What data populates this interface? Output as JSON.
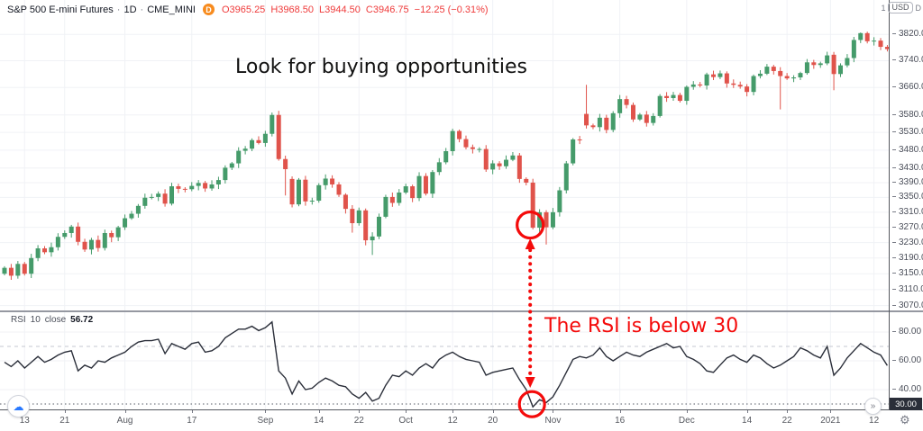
{
  "header": {
    "symbol": "S&P 500 E-mini Futures",
    "separator": "·",
    "interval": "1D",
    "exchange": "CME_MINI",
    "badge": "D",
    "ohlc": {
      "open": "O3965.25",
      "high": "H3968.50",
      "low": "L3944.50",
      "close": "C3946.75",
      "change": "−12.25 (−0.31%)"
    }
  },
  "axis_header": {
    "prefix": "1",
    "unit": "USD",
    "suffix": "D"
  },
  "indicator": {
    "name": "RSI",
    "length": "10",
    "source": "close",
    "value": "56.72"
  },
  "annotations": {
    "buy_text": "Look for buying opportunities",
    "rsi_text": "The RSI is below 30",
    "circle_bar": 79,
    "circle_price": 3269,
    "circle_rsi_value": 28
  },
  "price_axis": {
    "ticks": [
      3820,
      3740,
      3660,
      3580,
      3530,
      3480,
      3430,
      3390,
      3350,
      3310,
      3270,
      3230,
      3190,
      3150,
      3110,
      3070
    ]
  },
  "rsi_axis": {
    "ticks": [
      80,
      60,
      40
    ],
    "badge": "30.00",
    "upper_band": 70,
    "lower_band": 30
  },
  "time_axis": {
    "ticks": [
      {
        "label": "13",
        "bar": 3
      },
      {
        "label": "21",
        "bar": 9
      },
      {
        "label": "Aug",
        "bar": 18
      },
      {
        "label": "17",
        "bar": 28
      },
      {
        "label": "Sep",
        "bar": 39
      },
      {
        "label": "14",
        "bar": 47
      },
      {
        "label": "22",
        "bar": 53
      },
      {
        "label": "Oct",
        "bar": 60
      },
      {
        "label": "12",
        "bar": 67
      },
      {
        "label": "20",
        "bar": 73
      },
      {
        "label": "Nov",
        "bar": 82
      },
      {
        "label": "16",
        "bar": 92
      },
      {
        "label": "Dec",
        "bar": 102
      },
      {
        "label": "14",
        "bar": 111
      },
      {
        "label": "22",
        "bar": 117
      },
      {
        "label": "2021",
        "bar": 123.5
      },
      {
        "label": "12",
        "bar": 130
      }
    ]
  },
  "buttons": {
    "cloud_icon": "☁",
    "chevron_icon": "»",
    "gear_icon": "⚙"
  },
  "colors": {
    "up": "#459b6a",
    "down": "#e0534b",
    "rsi_line": "#2a2e39",
    "grid": "#f0f2f6",
    "annotation": "#f40b0b",
    "ohlc_text": "#ef3b3b",
    "badge_bg": "#2a2e39",
    "separator": "#9598a1",
    "axis_border": "#55585f"
  },
  "chart_data": [
    {
      "type": "candlestick",
      "title": "S&P 500 E-mini Futures · 1D · CME_MINI",
      "ylabel": "Price (USD)",
      "ylim": [
        3070,
        3850
      ],
      "scale": "log",
      "closes": [
        3165,
        3145,
        3175,
        3150,
        3190,
        3215,
        3205,
        3218,
        3245,
        3255,
        3272,
        3232,
        3212,
        3237,
        3216,
        3255,
        3244,
        3270,
        3294,
        3306,
        3327,
        3349,
        3351,
        3360,
        3333,
        3380,
        3373,
        3372,
        3381,
        3389,
        3374,
        3385,
        3397,
        3431,
        3443,
        3478,
        3484,
        3508,
        3500,
        3526,
        3580,
        3455,
        3427,
        3331,
        3398,
        3339,
        3341,
        3383,
        3401,
        3385,
        3357,
        3319,
        3281,
        3315,
        3236,
        3246,
        3298,
        3351,
        3335,
        3363,
        3380,
        3348,
        3408,
        3360,
        3419,
        3446,
        3477,
        3534,
        3511,
        3488,
        3483,
        3483,
        3426,
        3443,
        3435,
        3453,
        3465,
        3400,
        3390,
        3269,
        3310,
        3270,
        3310,
        3369,
        3443,
        3510,
        3509,
        3550,
        3545,
        3572,
        3537,
        3585,
        3626,
        3609,
        3567,
        3581,
        3557,
        3577,
        3635,
        3629,
        3638,
        3621,
        3662,
        3669,
        3666,
        3699,
        3691,
        3702,
        3672,
        3668,
        3663,
        3647,
        3694,
        3701,
        3722,
        3709,
        3694,
        3687,
        3690,
        3703,
        3735,
        3727,
        3732,
        3756,
        3700,
        3726,
        3748,
        3803,
        3824,
        3799,
        3801,
        3782,
        3775
      ],
      "gap_opens": {
        "0": 3150,
        "43": 3400,
        "87": 3583,
        "124": 3758
      },
      "wick_overrides": {
        "40": [
          3587,
          null
        ],
        "42": [
          null,
          3355
        ],
        "52": [
          null,
          3256
        ],
        "55": [
          null,
          3198
        ],
        "81": [
          null,
          3225
        ],
        "87": [
          3668,
          null
        ],
        "116": [
          null,
          3596
        ],
        "124": [
          null,
          3652
        ],
        "128": [
          3826,
          null
        ]
      }
    },
    {
      "type": "line",
      "title": "RSI 10 close",
      "ylim": [
        20,
        92
      ],
      "levels": [
        70,
        30
      ],
      "values": [
        59,
        56,
        60,
        55,
        59,
        63,
        59,
        61,
        64,
        66,
        67,
        53,
        57,
        55,
        60,
        59,
        62,
        64,
        66,
        70,
        73,
        74,
        74,
        75,
        65,
        72,
        70,
        68,
        72,
        73,
        66,
        67,
        70,
        76,
        79,
        82,
        82,
        84,
        81,
        83,
        87,
        53,
        48,
        37,
        46,
        40,
        41,
        45,
        48,
        46,
        43,
        42,
        37,
        34,
        38,
        32,
        34,
        43,
        50,
        49,
        53,
        50,
        55,
        58,
        55,
        61,
        64,
        66,
        63,
        61,
        60,
        59,
        50,
        52,
        53,
        54,
        55,
        47,
        40,
        28,
        33,
        31,
        35,
        43,
        52,
        61,
        63,
        62,
        64,
        69,
        63,
        60,
        63,
        66,
        64,
        63,
        66,
        68,
        70,
        72,
        69,
        70,
        63,
        61,
        58,
        53,
        52,
        57,
        62,
        64,
        61,
        59,
        64,
        62,
        58,
        55,
        57,
        60,
        63,
        69,
        67,
        64,
        62,
        70,
        50,
        55,
        62,
        67,
        72,
        69,
        66,
        64,
        56.72
      ]
    }
  ]
}
